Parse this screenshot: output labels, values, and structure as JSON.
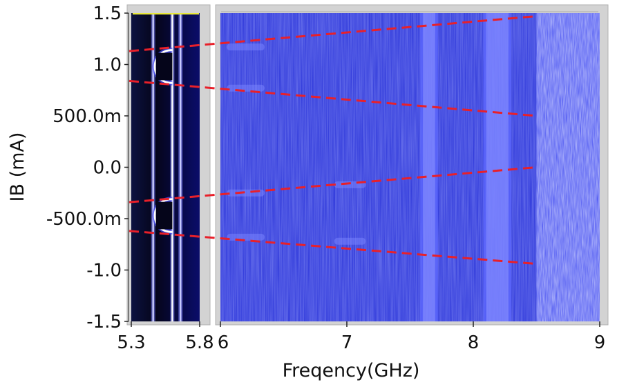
{
  "chart_data": [
    {
      "type": "heatmap",
      "title": "",
      "xlabel": "",
      "ylabel": "IB (mA)",
      "xlim": [
        5.3,
        5.8
      ],
      "ylim": [
        -1.5,
        1.5
      ],
      "x_ticks": [
        "5.3",
        "5.8"
      ],
      "y_ticks": [
        "1.5",
        "1.0",
        "500.0m",
        "0.0",
        "-500.0m",
        "-1.0",
        "-1.5"
      ],
      "colormap": [
        "#000010",
        "#0a0f7a",
        "#2a2bd8",
        "#8a8cff",
        "#ffffff"
      ],
      "features": {
        "bright_lines_x": [
          5.46,
          5.6,
          5.66
        ],
        "arcs": [
          {
            "y_center": 0.98,
            "y_half_height": 0.16,
            "x_start": 5.46,
            "x_end": 5.6
          },
          {
            "y_center": -0.47,
            "y_half_height": 0.16,
            "x_start": 5.46,
            "x_end": 5.6
          }
        ]
      }
    },
    {
      "type": "heatmap",
      "title": "",
      "xlabel": "Freqency(GHz)",
      "ylabel": "",
      "xlim": [
        6,
        9
      ],
      "ylim": [
        -1.5,
        1.5
      ],
      "x_ticks": [
        "6",
        "7",
        "8",
        "9"
      ],
      "colormap": [
        "#1b1fbe",
        "#2a35e6",
        "#6a74ff",
        "#b8bdff"
      ],
      "features": {
        "bright_bands_x": [
          [
            7.58,
            7.72
          ],
          [
            8.08,
            8.3
          ]
        ],
        "noise_start_x": 8.5,
        "faint_segments": [
          {
            "x": [
              6.05,
              6.35
            ],
            "y": 1.17
          },
          {
            "x": [
              6.05,
              6.35
            ],
            "y": 0.77
          },
          {
            "x": [
              6.05,
              6.35
            ],
            "y": -0.25
          },
          {
            "x": [
              6.05,
              6.35
            ],
            "y": -0.68
          },
          {
            "x": [
              6.9,
              7.15
            ],
            "y": -0.17
          },
          {
            "x": [
              6.9,
              7.15
            ],
            "y": -0.72
          }
        ]
      }
    }
  ],
  "fit_lines": [
    {
      "points": [
        [
          5.3,
          1.13
        ],
        [
          8.5,
          1.47
        ]
      ]
    },
    {
      "points": [
        [
          5.3,
          0.84
        ],
        [
          8.5,
          0.5
        ]
      ]
    },
    {
      "points": [
        [
          5.3,
          -0.34
        ],
        [
          8.5,
          0.0
        ]
      ]
    },
    {
      "points": [
        [
          5.3,
          -0.62
        ],
        [
          8.5,
          -0.94
        ]
      ]
    }
  ],
  "style": {
    "fit_line_color": "#e8202a",
    "frame_color": "#cfcfcf",
    "cursor_line_color": "#e9e93a"
  }
}
